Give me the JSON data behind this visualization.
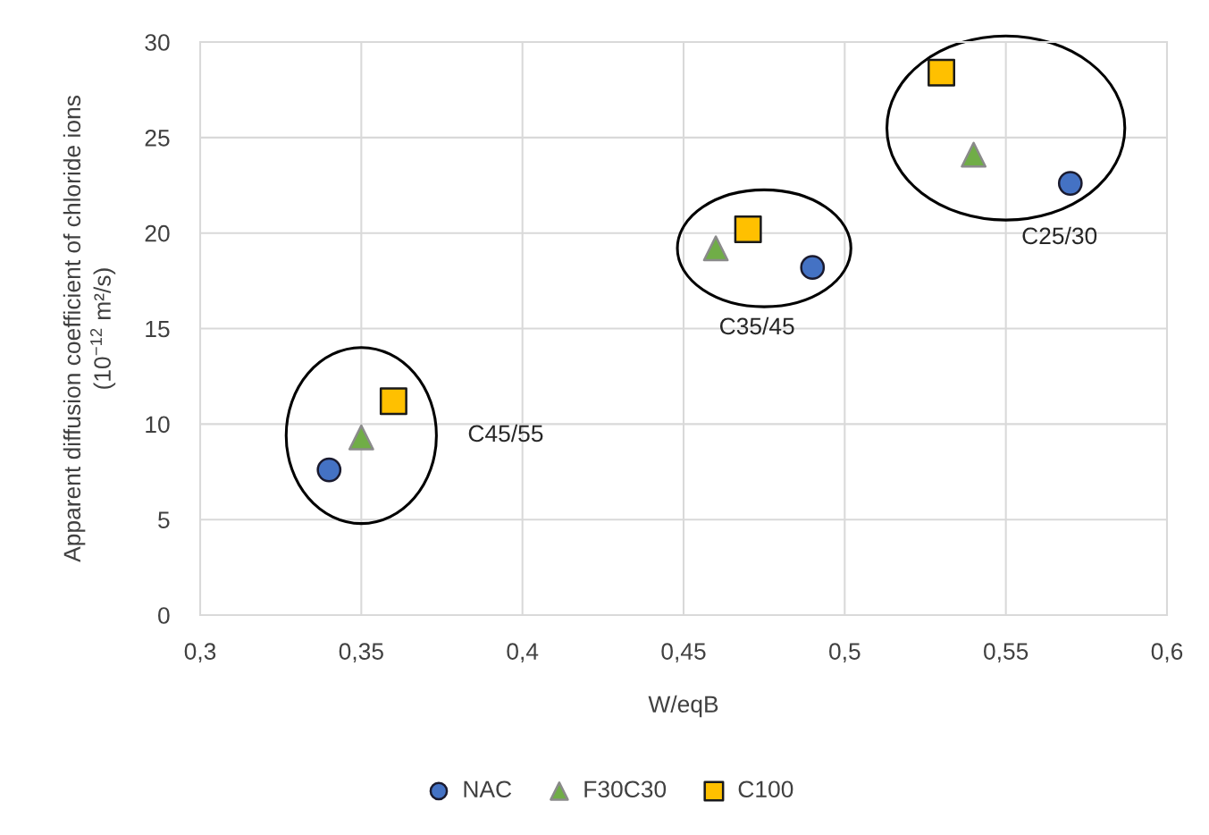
{
  "chart_data": {
    "type": "scatter",
    "xlabel": "W/eqB",
    "ylabel": "Apparent diffusion coefficient of chloride ions\n(10$^{−12}$ m²/s)",
    "xlim": [
      0.3,
      0.6
    ],
    "xticks": [
      {
        "value": 0.3,
        "label": "0,3"
      },
      {
        "value": 0.35,
        "label": "0,35"
      },
      {
        "value": 0.4,
        "label": "0,4"
      },
      {
        "value": 0.45,
        "label": "0,45"
      },
      {
        "value": 0.5,
        "label": "0,5"
      },
      {
        "value": 0.55,
        "label": "0,55"
      },
      {
        "value": 0.6,
        "label": "0,6"
      }
    ],
    "ylim": [
      0,
      30
    ],
    "yticks": [
      0,
      5,
      10,
      15,
      20,
      25,
      30
    ],
    "grid": true,
    "legend": "bottom",
    "series": [
      {
        "name": "NAC",
        "color": "#4472c4",
        "marker": "circle",
        "x": [
          0.34,
          0.49,
          0.57
        ],
        "values": [
          7.6,
          18.2,
          22.6
        ]
      },
      {
        "name": "F30C30",
        "color": "#70ad47",
        "marker": "triangle",
        "x": [
          0.35,
          0.46,
          0.54
        ],
        "values": [
          9.3,
          19.2,
          24.1
        ]
      },
      {
        "name": "C100",
        "color": "#ffc000",
        "marker": "square",
        "x": [
          0.36,
          0.47,
          0.53
        ],
        "values": [
          11.2,
          20.2,
          28.4
        ]
      }
    ],
    "annotations": [
      "C45/55",
      "C35/45",
      "C25/30"
    ]
  }
}
